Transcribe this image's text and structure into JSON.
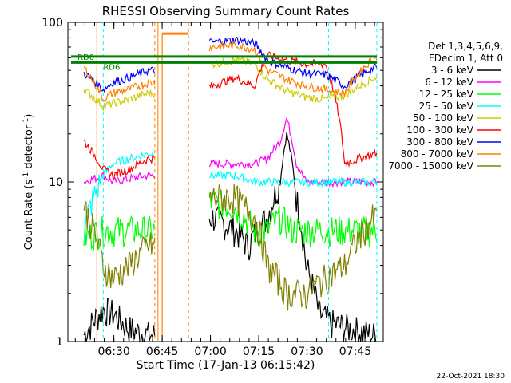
{
  "chart_data": {
    "type": "line",
    "title": "RHESSI Observing Summary Count Rates",
    "xlabel": "Start Time (17-Jan-13 06:15:42)",
    "ylabel_main": "Count Rate (s",
    "ylabel_sup": "-1",
    "ylabel_tail": " detector",
    "ylabel_end": ")",
    "y_scale": "log",
    "ylim": [
      1,
      100
    ],
    "xlim_minutes": [
      0,
      98
    ],
    "x_ticks": [
      {
        "label": "06:30",
        "minutes": 14.3
      },
      {
        "label": "06:45",
        "minutes": 29.3
      },
      {
        "label": "07:00",
        "minutes": 44.3
      },
      {
        "label": "07:15",
        "minutes": 59.3
      },
      {
        "label": "07:30",
        "minutes": 74.3
      },
      {
        "label": "07:45",
        "minutes": 89.3
      }
    ],
    "y_ticks": [
      {
        "label": "1",
        "value": 1
      },
      {
        "label": "10",
        "value": 10
      },
      {
        "label": "100",
        "value": 100
      }
    ],
    "legend_header": [
      "Det 1,3,4,5,6,9,",
      "FDecim 1, Att 0"
    ],
    "legend_placement": "right",
    "flags": [
      {
        "label": "RD0",
        "color": "#008000"
      },
      {
        "label": "RD6",
        "color": "#008000"
      }
    ],
    "series": [
      {
        "name": "3 - 6 keV",
        "color": "#000000",
        "points": [
          [
            5,
            1.1
          ],
          [
            11,
            1.6
          ],
          [
            14,
            1.5
          ],
          [
            19,
            1.2
          ],
          [
            25,
            1.1
          ],
          [
            45,
            6
          ],
          [
            52,
            5
          ],
          [
            56,
            4
          ],
          [
            62,
            6
          ],
          [
            66,
            10
          ],
          [
            68,
            20
          ],
          [
            71,
            8
          ],
          [
            74,
            3
          ],
          [
            78,
            1.5
          ],
          [
            82,
            1.3
          ],
          [
            88,
            1.2
          ],
          [
            95,
            1.1
          ]
        ]
      },
      {
        "name": "6 - 12 keV",
        "color": "#ff00ff",
        "points": [
          [
            5,
            10
          ],
          [
            11,
            11
          ],
          [
            14,
            10
          ],
          [
            19,
            10.5
          ],
          [
            25,
            11
          ],
          [
            45,
            13
          ],
          [
            52,
            13
          ],
          [
            58,
            13
          ],
          [
            62,
            14
          ],
          [
            66,
            18
          ],
          [
            68,
            25
          ],
          [
            71,
            13
          ],
          [
            74,
            10
          ],
          [
            80,
            10
          ],
          [
            86,
            10
          ],
          [
            95,
            10
          ]
        ]
      },
      {
        "name": "12 - 25 keV",
        "color": "#00ff00",
        "points": [
          [
            5,
            4.5
          ],
          [
            11,
            5
          ],
          [
            14,
            5
          ],
          [
            19,
            5
          ],
          [
            25,
            5
          ],
          [
            45,
            7.5
          ],
          [
            52,
            7
          ],
          [
            58,
            5
          ],
          [
            62,
            5
          ],
          [
            66,
            6
          ],
          [
            70,
            5
          ],
          [
            74,
            5
          ],
          [
            80,
            5
          ],
          [
            86,
            5
          ],
          [
            95,
            5
          ]
        ]
      },
      {
        "name": "25 - 50 keV",
        "color": "#00ffff",
        "points": [
          [
            5,
            5
          ],
          [
            11,
            11
          ],
          [
            14,
            13
          ],
          [
            19,
            14
          ],
          [
            25,
            15
          ],
          [
            45,
            11
          ],
          [
            52,
            11
          ],
          [
            58,
            10
          ],
          [
            62,
            10
          ],
          [
            70,
            10
          ],
          [
            74,
            10
          ],
          [
            80,
            10
          ],
          [
            86,
            10
          ],
          [
            95,
            10
          ]
        ]
      },
      {
        "name": "50 - 100 keV",
        "color": "#cccc00",
        "points": [
          [
            5,
            38
          ],
          [
            11,
            30
          ],
          [
            14,
            31
          ],
          [
            19,
            33
          ],
          [
            25,
            36
          ],
          [
            45,
            55
          ],
          [
            52,
            58
          ],
          [
            58,
            55
          ],
          [
            62,
            44
          ],
          [
            68,
            37
          ],
          [
            74,
            34
          ],
          [
            80,
            33
          ],
          [
            86,
            35
          ],
          [
            95,
            45
          ]
        ]
      },
      {
        "name": "100 - 300 keV",
        "color": "#ff0000",
        "points": [
          [
            5,
            18
          ],
          [
            11,
            12
          ],
          [
            14,
            11
          ],
          [
            19,
            12
          ],
          [
            25,
            14
          ],
          [
            45,
            40
          ],
          [
            52,
            45
          ],
          [
            58,
            40
          ],
          [
            62,
            62
          ],
          [
            68,
            58
          ],
          [
            74,
            55
          ],
          [
            80,
            55
          ],
          [
            86,
            13
          ],
          [
            95,
            15
          ]
        ]
      },
      {
        "name": "300 - 800 keV",
        "color": "#0000ff",
        "points": [
          [
            5,
            48
          ],
          [
            11,
            38
          ],
          [
            14,
            42
          ],
          [
            19,
            45
          ],
          [
            25,
            50
          ],
          [
            45,
            75
          ],
          [
            52,
            78
          ],
          [
            58,
            74
          ],
          [
            62,
            58
          ],
          [
            68,
            52
          ],
          [
            74,
            48
          ],
          [
            80,
            47
          ],
          [
            86,
            40
          ],
          [
            95,
            52
          ]
        ]
      },
      {
        "name": "800 - 7000 keV",
        "color": "#ff8000",
        "points": [
          [
            5,
            52
          ],
          [
            11,
            33
          ],
          [
            14,
            36
          ],
          [
            19,
            38
          ],
          [
            25,
            42
          ],
          [
            45,
            70
          ],
          [
            52,
            72
          ],
          [
            58,
            68
          ],
          [
            62,
            50
          ],
          [
            68,
            44
          ],
          [
            74,
            40
          ],
          [
            80,
            38
          ],
          [
            86,
            36
          ],
          [
            95,
            60
          ]
        ]
      },
      {
        "name": "7000 - 15000 keV",
        "color": "#808000",
        "points": [
          [
            5,
            7
          ],
          [
            11,
            3
          ],
          [
            14,
            2.5
          ],
          [
            19,
            3
          ],
          [
            25,
            4
          ],
          [
            45,
            8
          ],
          [
            52,
            8
          ],
          [
            58,
            6
          ],
          [
            62,
            3
          ],
          [
            68,
            2
          ],
          [
            74,
            2
          ],
          [
            80,
            2.5
          ],
          [
            86,
            3
          ],
          [
            95,
            6
          ]
        ]
      }
    ],
    "attenuator_marker": {
      "label": "800 - 7000 keV",
      "value": 85,
      "start_minutes": 29.3,
      "end_minutes": 37.5
    }
  },
  "footer_date": "22-Oct-2021 18:30"
}
